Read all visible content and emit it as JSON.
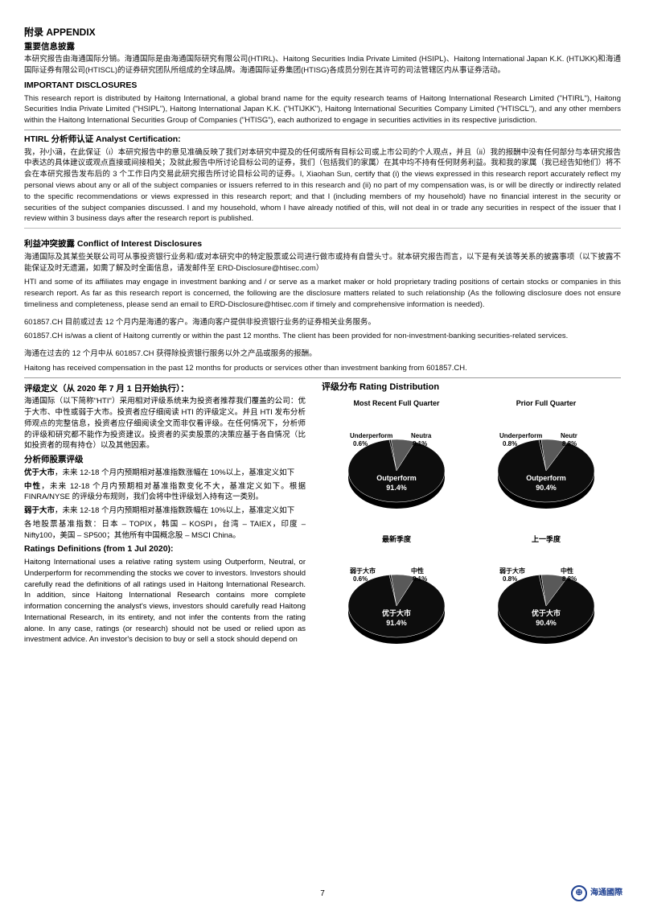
{
  "appendix_heading": "附录 APPENDIX",
  "important_disclosures_heading_cn": "重要信息披露",
  "id_cn_body": "本研究报告由海通国际分销。海通国际是由海通国际研究有限公司(HTIRL)、Haitong Securities India Private Limited (HSIPL)、Haitong International Japan K.K. (HTIJKK)和海通国际证券有限公司(HTISCL)的证券研究团队所组成的全球品牌。海通国际证券集团(HTISG)各成员分别在其许可的司法管辖区内从事证券活动。",
  "important_disclosures_heading_en": "IMPORTANT DISCLOSURES",
  "id_en_body": "This research report is distributed by Haitong International, a global brand name for the equity research teams of Haitong International Research Limited (\"HTIRL\"), Haitong Securities India Private Limited (\"HSIPL\"), Haitong International Japan K.K. (\"HTIJKK\"), Haitong International Securities Company Limited (\"HTISCL\"), and any other members within the Haitong International Securities Group of Companies (\"HTISG\"), each authorized to engage in securities activities in its respective jurisdiction.",
  "htirl_heading": "HTIRL 分析师认证 Analyst Certification:",
  "htirl_body": "我，孙小涵，在此保证（i）本研究报告中的意见准确反映了我们对本研究中提及的任何或所有目标公司或上市公司的个人观点，并且（ii）我的报酬中没有任何部分与本研究报告中表达的具体建议或观点直接或间接相关；及就此报告中所讨论目标公司的证券，我们（包括我们的家属）在其中均不持有任何财务利益。我和我的家属（我已经告知他们）将不会在本研究报告发布后的 3 个工作日内交易此研究报告所讨论目标公司的证券。I, Xiaohan Sun, certify that (i) the views expressed in this research report accurately reflect my personal views about any or all of the subject companies or issuers referred to in this research and (ii) no part of my compensation was, is or will be directly or indirectly related to the specific recommendations or views expressed in this research report; and that I (including members of my household) have no financial interest in the security or securities of the subject companies discussed. I and my household, whom I have already notified of this, will not deal in or trade any securities in respect of the issuer that I review within 3 business days after the research report is published.",
  "coi_heading": "利益冲突披露 Conflict of Interest Disclosures",
  "coi_body_cn": "海通国际及其某些关联公司可从事投资银行业务和/或对本研究中的特定股票或公司进行做市或持有自营头寸。就本研究报告而言，以下是有关该等关系的披露事项（以下披露不能保证及时无遗漏，如需了解及时全面信息，请发邮件至 ERD-Disclosure@htisec.com）",
  "coi_body_en": "HTI and some of its affiliates may engage in investment banking and / or serve as a market maker or hold proprietary trading positions of certain stocks or companies in this research report. As far as this research report is concerned, the following are the disclosure matters related to such relationship (As the following disclosure does not ensure timeliness and completeness, please send an email to ERD-Disclosure@htisec.com if timely and comprehensive information is needed).",
  "client_cn": "601857.CH 目前或过去 12 个月内是海通的客户。海通向客户提供非投资银行业务的证券相关业务服务。",
  "client_en": "601857.CH is/was a client of Haitong currently or within the past 12 months. The client has been provided for non-investment-banking securities-related services.",
  "comp_cn": "海通在过去的 12 个月中从 601857.CH 获得除投资银行服务以外之产品或服务的报酬。",
  "comp_en": "Haitong has received compensation in the past 12 months for products or services other than investment banking from 601857.CH.",
  "ratings_def_heading": "评级定义（从 2020 年 7 月 1 日开始执行）：",
  "ratings_def_body1": "海通国际（以下简称\"HTI\"）采用相对评级系统来为投资者推荐我们覆盖的公司：优于大市、中性或弱于大市。投资者应仔细阅读 HTI 的评级定义。并且 HTI 发布分析师观点的完整信息，投资者应仔细阅读全文而非仅看评级。在任何情况下，分析师的评级和研究都不能作为投资建议。投资者的买卖股票的决策应基于各自情况（比如投资者的现有持仓）以及其他因素。",
  "analyst_rating_heading": "分析师股票评级",
  "out_label": "优于大市",
  "out_text": "，未来 12-18 个月内预期相对基准指数涨幅在 10%以上，基准定义如下",
  "neutral_label": "中性",
  "neutral_text": "，未来 12-18 个月内预期相对基准指数变化不大，基准定义如下。根据 FINRA/NYSE 的评级分布规则，我们会将中性评级划入持有这一类别。",
  "under_label": "弱于大市",
  "under_text": "，未来 12-18 个月内预期相对基准指数跌幅在 10%以上，基准定义如下",
  "benchmark": "各地股票基准指数：日本 – TOPIX，韩国 – KOSPI，台湾 – TAIEX，印度 – Nifty100，美国 – SP500；其他所有中国概念股 – MSCI China。",
  "ratings_en_heading": "Ratings Definitions (from 1 Jul 2020):",
  "ratings_en_body": "Haitong International uses a relative rating system using Outperform, Neutral, or Underperform for recommending the stocks we cover to investors. Investors should carefully read the definitions of all ratings used in Haitong International Research. In addition, since Haitong International Research contains more complete information concerning the analyst's views, investors should carefully read Haitong International Research, in its entirety, and not infer the contents from the rating alone. In any case, ratings (or research) should not be used or relied upon as investment advice. An investor's decision to buy or sell a stock should depend on",
  "rating_distribution_heading": "评级分布 Rating Distribution",
  "charts": {
    "recent_en": {
      "title": "Most Recent Full Quarter",
      "slices": [
        {
          "label": "Underperform",
          "value": 0.6,
          "label_text": "Underperform",
          "value_text": "0.6%"
        },
        {
          "label": "Neutral",
          "value": 8.1,
          "label_text": "Neutra",
          "value_text": "8.1%"
        },
        {
          "label": "Outperform",
          "value": 91.4,
          "label_text": "Outperform",
          "value_text": "91.4%"
        }
      ]
    },
    "prior_en": {
      "title": "Prior Full Quarter",
      "slices": [
        {
          "label": "Underperform",
          "value": 0.8,
          "label_text": "Underperform",
          "value_text": "0.8%"
        },
        {
          "label": "Neutral",
          "value": 8.8,
          "label_text": "Neutr",
          "value_text": "8.8%"
        },
        {
          "label": "Outperform",
          "value": 90.4,
          "label_text": "Outperform",
          "value_text": "90.4%"
        }
      ]
    },
    "recent_cn": {
      "title": "最新季度",
      "slices": [
        {
          "label": "弱于大市",
          "value": 0.6,
          "label_text": "弱于大市",
          "value_text": "0.6%"
        },
        {
          "label": "中性",
          "value": 8.1,
          "label_text": "中性",
          "value_text": "8.1%"
        },
        {
          "label": "优于大市",
          "value": 91.4,
          "label_text": "优于大市",
          "value_text": "91.4%"
        }
      ]
    },
    "prior_cn": {
      "title": "上一季度",
      "slices": [
        {
          "label": "弱于大市",
          "value": 0.8,
          "label_text": "弱于大市",
          "value_text": "0.8%"
        },
        {
          "label": "中性",
          "value": 8.8,
          "label_text": "中性",
          "value_text": "8.8%"
        },
        {
          "label": "优于大市",
          "value": 90.4,
          "label_text": "优于大市",
          "value_text": "90.4%"
        }
      ]
    },
    "colors": {
      "underperform": "#000000",
      "neutral": "#595959",
      "outperform": "#0d0d0d",
      "label_color_light": "#ffffff",
      "label_color_dark": "#000000"
    },
    "radius": 60
  },
  "page_number": "7",
  "logo_text": "海通國際"
}
